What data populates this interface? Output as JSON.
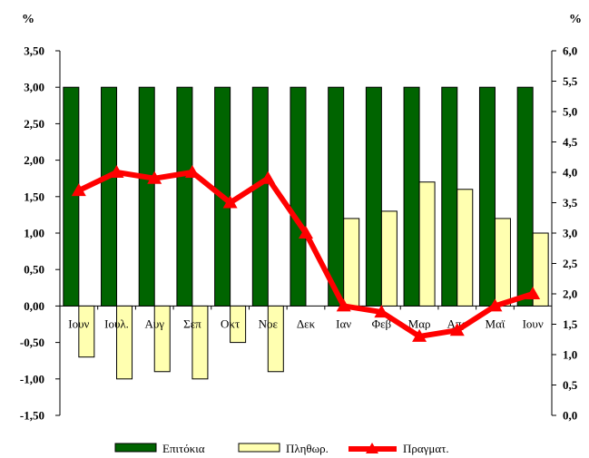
{
  "chart_data": {
    "type": "bar",
    "categories": [
      "Ιουν",
      "Ιουλ.",
      "Αυγ",
      "Σεπ",
      "Οκτ",
      "Νοε",
      "Δεκ",
      "Ιαν",
      "Φεβ",
      "Μαρ",
      "Απρ",
      "Μαϊ",
      "Ιουν"
    ],
    "series": [
      {
        "name": "Επιτόκια",
        "type": "bar",
        "axis": "left",
        "color": "#006400",
        "values": [
          3.0,
          3.0,
          3.0,
          3.0,
          3.0,
          3.0,
          3.0,
          3.0,
          3.0,
          3.0,
          3.0,
          3.0,
          3.0
        ]
      },
      {
        "name": "Πληθωρ.",
        "type": "bar",
        "axis": "left",
        "color": "#FFFFB0",
        "values": [
          -0.7,
          -1.0,
          -0.9,
          -1.0,
          -0.5,
          -0.9,
          0.0,
          1.2,
          1.3,
          1.7,
          1.6,
          1.2,
          1.0
        ]
      },
      {
        "name": "Πραγματ.",
        "type": "line",
        "axis": "right",
        "color": "#FF0000",
        "values": [
          3.7,
          4.0,
          3.9,
          4.0,
          3.5,
          3.9,
          3.0,
          1.8,
          1.7,
          1.3,
          1.4,
          1.8,
          2.0
        ]
      }
    ],
    "y_left": {
      "unit": "%",
      "ylim": [
        -1.5,
        3.5
      ],
      "ticks": [
        "3,50",
        "3,00",
        "2,50",
        "2,00",
        "1,50",
        "1,00",
        "0,50",
        "0,00",
        "-0,50",
        "-1,00",
        "-1,50"
      ]
    },
    "y_right": {
      "unit": "%",
      "ylim": [
        0.0,
        6.0
      ],
      "ticks": [
        "6,0",
        "5,5",
        "5,0",
        "4,5",
        "4,0",
        "3,5",
        "3,0",
        "2,5",
        "2,0",
        "1,5",
        "1,0",
        "0,5",
        "0,0"
      ]
    },
    "grid": false,
    "legend_position": "bottom"
  }
}
